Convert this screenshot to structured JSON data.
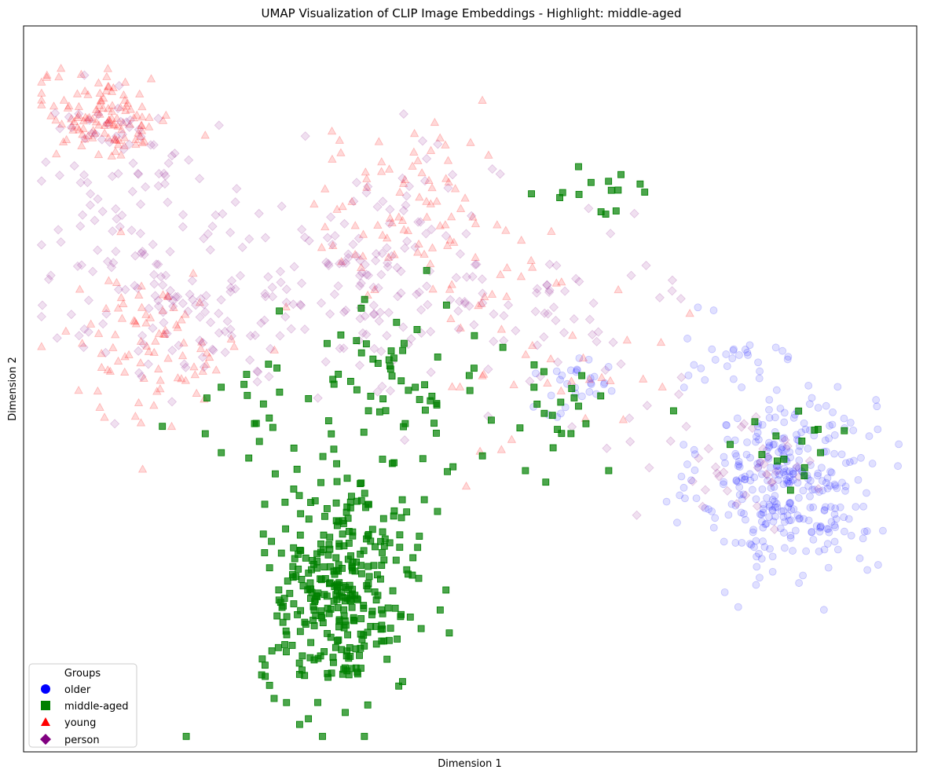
{
  "chart_data": {
    "type": "scatter",
    "title": "UMAP Visualization of CLIP Image Embeddings - Highlight: middle-aged",
    "xlabel": "Dimension 1",
    "ylabel": "Dimension 2",
    "xlim": [
      0,
      100
    ],
    "ylim": [
      0,
      100
    ],
    "grid": false,
    "ticks": false,
    "highlight": "middle-aged",
    "legend": {
      "title": "Groups",
      "placement": "lower-left",
      "entries": [
        "older",
        "middle-aged",
        "young",
        "person"
      ]
    },
    "series": [
      {
        "name": "older",
        "marker": "circle",
        "color": "#0000ff",
        "alpha": 0.12,
        "clusters": [
          {
            "cx": 86,
            "cy": 37,
            "sx": 6.5,
            "sy": 9,
            "n": 330
          },
          {
            "cx": 62,
            "cy": 50,
            "sx": 4,
            "sy": 3,
            "n": 30
          },
          {
            "cx": 79,
            "cy": 55,
            "sx": 4,
            "sy": 3,
            "n": 25
          }
        ]
      },
      {
        "name": "middle-aged",
        "marker": "square",
        "color": "#008000",
        "alpha": 0.7,
        "clusters": [
          {
            "cx": 35.5,
            "cy": 22,
            "sx": 6,
            "sy": 10,
            "n": 330
          },
          {
            "cx": 40,
            "cy": 50,
            "sx": 8,
            "sy": 8,
            "n": 65
          },
          {
            "cx": 60,
            "cy": 45,
            "sx": 7,
            "sy": 6,
            "n": 25
          },
          {
            "cx": 87,
            "cy": 42,
            "sx": 5,
            "sy": 4,
            "n": 15
          },
          {
            "cx": 65,
            "cy": 78,
            "sx": 4,
            "sy": 2.5,
            "n": 15
          },
          {
            "cx": 25,
            "cy": 46,
            "sx": 4,
            "sy": 5,
            "n": 15
          }
        ]
      },
      {
        "name": "young",
        "marker": "triangle",
        "color": "#ff0000",
        "alpha": 0.15,
        "clusters": [
          {
            "cx": 9,
            "cy": 88,
            "sx": 5,
            "sy": 4,
            "n": 120
          },
          {
            "cx": 14,
            "cy": 56,
            "sx": 7,
            "sy": 7,
            "n": 90
          },
          {
            "cx": 43,
            "cy": 75,
            "sx": 8,
            "sy": 8,
            "n": 90
          },
          {
            "cx": 60,
            "cy": 55,
            "sx": 9,
            "sy": 10,
            "n": 40
          }
        ]
      },
      {
        "name": "person",
        "marker": "diamond",
        "color": "#800080",
        "alpha": 0.12,
        "clusters": [
          {
            "cx": 17,
            "cy": 64,
            "sx": 10,
            "sy": 9,
            "n": 140
          },
          {
            "cx": 40,
            "cy": 65,
            "sx": 9,
            "sy": 11,
            "n": 150
          },
          {
            "cx": 10,
            "cy": 82,
            "sx": 6,
            "sy": 7,
            "n": 60
          },
          {
            "cx": 62,
            "cy": 60,
            "sx": 8,
            "sy": 9,
            "n": 50
          },
          {
            "cx": 80,
            "cy": 40,
            "sx": 6,
            "sy": 6,
            "n": 40
          }
        ]
      }
    ]
  }
}
